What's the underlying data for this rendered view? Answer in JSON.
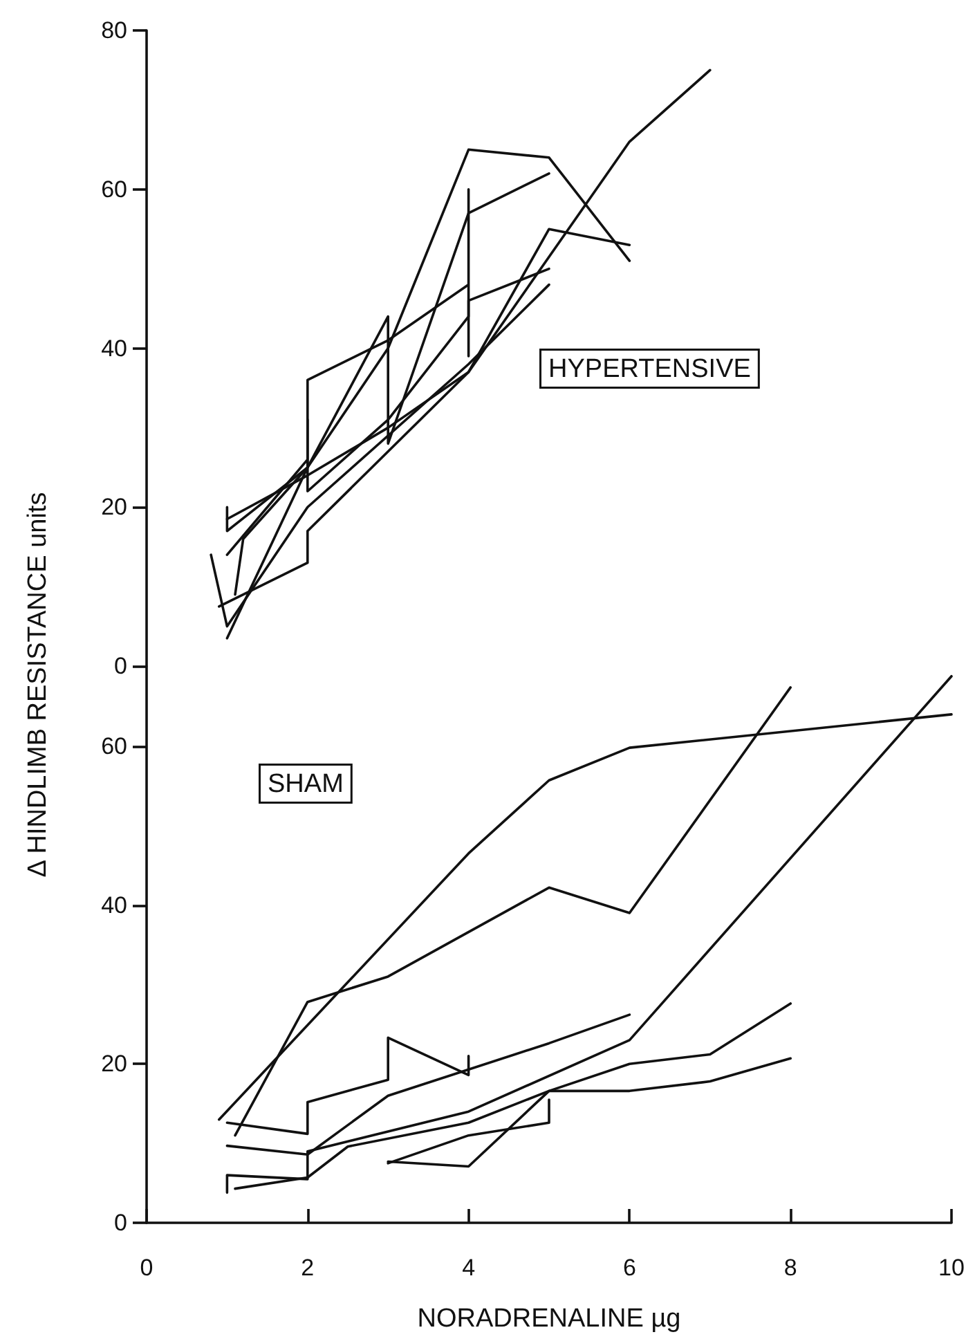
{
  "chart_data": [
    {
      "type": "line",
      "ylabel": "Δ HINDLIMB RESISTANCE  units",
      "annotations": [
        "HYPERTENSIVE"
      ],
      "xlim": [
        0,
        10
      ],
      "ylim": [
        0,
        80
      ],
      "yticks": [
        0,
        20,
        40,
        60,
        80
      ],
      "tick_labels": "y",
      "grid": false,
      "series": [
        {
          "color": "#111111",
          "x": [
            0.9,
            2,
            2,
            4,
            5,
            6
          ],
          "values": [
            7.5,
            13,
            17,
            37,
            55,
            53
          ]
        },
        {
          "color": "#111111",
          "x": [
            1,
            2,
            3,
            4,
            5,
            6
          ],
          "values": [
            3.5,
            25,
            40,
            65,
            64,
            51
          ]
        },
        {
          "color": "#111111",
          "x": [
            1,
            2,
            3,
            4,
            6,
            7
          ],
          "values": [
            18.5,
            24,
            30,
            37,
            66,
            75
          ]
        },
        {
          "color": "#111111",
          "x": [
            1,
            1,
            2,
            2,
            3,
            4,
            4,
            4
          ],
          "values": [
            20,
            17,
            25,
            36,
            41,
            48,
            60,
            39
          ]
        },
        {
          "color": "#111111",
          "x": [
            1.1,
            1.2,
            2,
            3,
            3,
            4,
            5
          ],
          "values": [
            9,
            16,
            25,
            44,
            28,
            57,
            62
          ]
        },
        {
          "color": "#111111",
          "x": [
            1,
            2,
            2,
            2,
            3,
            4,
            4,
            5
          ],
          "values": [
            14,
            26,
            31,
            22,
            31,
            44,
            46,
            50
          ]
        },
        {
          "color": "#111111",
          "x": [
            0.8,
            1,
            2,
            4,
            5
          ],
          "values": [
            14,
            5,
            20,
            38,
            48
          ]
        }
      ]
    },
    {
      "type": "line",
      "xlabel": "NORADRENALINE µg",
      "annotations": [
        "SHAM"
      ],
      "xlim": [
        0,
        10
      ],
      "xticks": [
        0,
        2,
        4,
        6,
        8,
        10
      ],
      "ylim": [
        0,
        70
      ],
      "yticks": [
        0,
        20,
        40,
        60
      ],
      "grid": false,
      "series": [
        {
          "color": "#111111",
          "x": [
            0.9,
            4,
            5,
            6,
            10
          ],
          "values": [
            13,
            46.5,
            55.7,
            59.8,
            64
          ]
        },
        {
          "color": "#111111",
          "x": [
            1.1,
            2,
            3,
            5,
            6,
            8
          ],
          "values": [
            11,
            27.8,
            31,
            42.2,
            39,
            67.4
          ]
        },
        {
          "color": "#111111",
          "x": [
            1,
            2,
            2,
            3,
            3,
            4,
            4
          ],
          "values": [
            12.6,
            11.2,
            15.2,
            18,
            23.3,
            18.6,
            21
          ]
        },
        {
          "color": "#111111",
          "x": [
            1,
            2,
            3,
            5,
            6
          ],
          "values": [
            9.7,
            8.6,
            16,
            22.6,
            26.2
          ]
        },
        {
          "color": "#111111",
          "x": [
            1,
            1,
            2,
            2,
            4,
            6,
            10
          ],
          "values": [
            3.8,
            6,
            5.5,
            9,
            14,
            23,
            68.8
          ]
        },
        {
          "color": "#111111",
          "x": [
            1.1,
            2,
            2.5,
            4,
            5,
            6,
            7,
            8
          ],
          "values": [
            4.3,
            5.7,
            9.6,
            12.6,
            16.6,
            16.6,
            17.8,
            20.7
          ]
        },
        {
          "color": "#111111",
          "x": [
            3,
            4,
            5,
            6,
            7,
            8
          ],
          "values": [
            7.7,
            7.1,
            16.6,
            20,
            21.2,
            27.6
          ]
        },
        {
          "color": "#111111",
          "x": [
            3,
            4,
            5,
            5
          ],
          "values": [
            7.5,
            11,
            12.6,
            15.5
          ]
        }
      ]
    }
  ]
}
